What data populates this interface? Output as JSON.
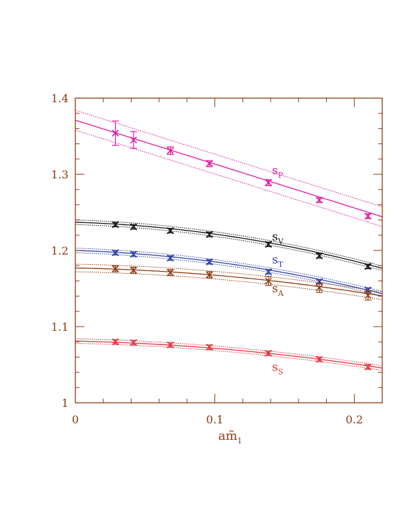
{
  "chart_data": {
    "type": "scatter",
    "xlabel": "am̃",
    "xlabel_sub": "1",
    "xlim": [
      0,
      0.22
    ],
    "ylim": [
      1.0,
      1.4
    ],
    "x_ticks": [
      {
        "value": 0,
        "label": "0"
      },
      {
        "value": 0.1,
        "label": "0.1"
      },
      {
        "value": 0.2,
        "label": "0.2"
      }
    ],
    "y_ticks": [
      {
        "value": 1.0,
        "label": "1"
      },
      {
        "value": 1.1,
        "label": "1.1"
      },
      {
        "value": 1.2,
        "label": "1.2"
      },
      {
        "value": 1.3,
        "label": "1.3"
      },
      {
        "value": 1.4,
        "label": "1.4"
      }
    ],
    "axis_color": "#8b3a0e",
    "series": [
      {
        "name": "s",
        "sub": "P",
        "color": "#e0169f",
        "label_at": [
          0.141,
          1.3
        ],
        "x": [
          0.0287,
          0.0417,
          0.0681,
          0.0961,
          0.1384,
          0.1749,
          0.2098
        ],
        "y": [
          1.354,
          1.345,
          1.331,
          1.314,
          1.289,
          1.266,
          1.245
        ],
        "err": [
          0.016,
          0.011,
          0.005,
          0.004,
          0.004,
          0.003,
          0.003
        ],
        "fit": [
          1.371,
          -0.576,
          0.0
        ],
        "band": 0.013
      },
      {
        "name": "s",
        "sub": "V",
        "color": "#111111",
        "label_at": [
          0.141,
          1.213
        ],
        "x": [
          0.0287,
          0.0417,
          0.0681,
          0.0961,
          0.1384,
          0.1749,
          0.2098
        ],
        "y": [
          1.234,
          1.231,
          1.226,
          1.221,
          1.208,
          1.193,
          1.179
        ],
        "err": [
          0.003,
          0.003,
          0.003,
          0.003,
          0.003,
          0.003,
          0.003
        ],
        "fit": [
          1.237,
          -0.055,
          -1.0
        ],
        "band": 0.003
      },
      {
        "name": "s",
        "sub": "T",
        "color": "#2a3fa8",
        "label_at": [
          0.141,
          1.183
        ],
        "x": [
          0.0287,
          0.0417,
          0.0681,
          0.0961,
          0.1384,
          0.1749,
          0.2098
        ],
        "y": [
          1.197,
          1.195,
          1.19,
          1.185,
          1.172,
          1.159,
          1.148
        ],
        "err": [
          0.003,
          0.003,
          0.003,
          0.003,
          0.003,
          0.003,
          0.003
        ],
        "fit": [
          1.2,
          -0.06,
          -0.9
        ],
        "band": 0.003
      },
      {
        "name": "s",
        "sub": "A",
        "color": "#8b3a0e",
        "label_at": [
          0.141,
          1.145
        ],
        "x": [
          0.0287,
          0.0417,
          0.0681,
          0.0961,
          0.1384,
          0.1749,
          0.2098
        ],
        "y": [
          1.176,
          1.174,
          1.171,
          1.168,
          1.16,
          1.151,
          1.141
        ],
        "err": [
          0.004,
          0.004,
          0.004,
          0.004,
          0.006,
          0.006,
          0.006
        ],
        "fit": [
          1.177,
          -0.035,
          -0.6
        ],
        "band": 0.005
      },
      {
        "name": "s",
        "sub": "S",
        "color": "#e8303a",
        "label_at": [
          0.141,
          1.042
        ],
        "x": [
          0.0287,
          0.0417,
          0.0681,
          0.0961,
          0.1384,
          0.1749,
          0.2098
        ],
        "y": [
          1.08,
          1.079,
          1.076,
          1.073,
          1.065,
          1.057,
          1.047
        ],
        "err": [
          0.003,
          0.003,
          0.003,
          0.003,
          0.003,
          0.003,
          0.003
        ],
        "fit": [
          1.081,
          -0.04,
          -0.55
        ],
        "band": 0.003
      }
    ]
  }
}
